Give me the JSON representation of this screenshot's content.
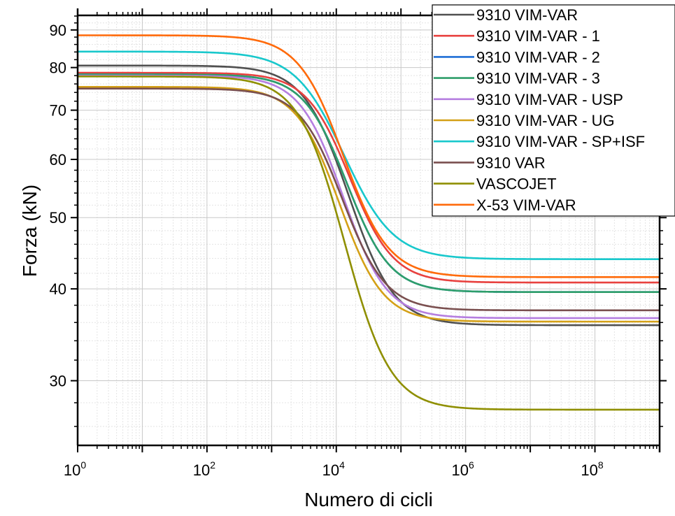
{
  "chart_data": {
    "type": "line",
    "title": "",
    "xlabel": "Numero di cicli",
    "ylabel": "Forza (kN)",
    "xscale": "log",
    "yscale": "log",
    "xlim": [
      1,
      1000000000
    ],
    "ylim": [
      24.5,
      94.2
    ],
    "grid": true,
    "legend_position": "top-right",
    "x_ticks": [
      {
        "value": 1,
        "base": "10",
        "exp": "0"
      },
      {
        "value": 100,
        "base": "10",
        "exp": "2"
      },
      {
        "value": 10000,
        "base": "10",
        "exp": "4"
      },
      {
        "value": 1000000,
        "base": "10",
        "exp": "6"
      },
      {
        "value": 100000000,
        "base": "10",
        "exp": "8"
      }
    ],
    "y_ticks": [
      {
        "value": 30,
        "label": "30"
      },
      {
        "value": 40,
        "label": "40"
      },
      {
        "value": 50,
        "label": "50"
      },
      {
        "value": 60,
        "label": "60"
      },
      {
        "value": 70,
        "label": "70"
      },
      {
        "value": 80,
        "label": "80"
      },
      {
        "value": 90,
        "label": "90"
      }
    ],
    "series": [
      {
        "name": "9310 VIM-VAR",
        "color": "#505050",
        "high": 80.5,
        "low": 35.7,
        "mid_log10N": 4.05,
        "slope": 1.25
      },
      {
        "name": "9310 VIM-VAR - 1",
        "color": "#e8413f",
        "high": 78.7,
        "low": 40.8,
        "mid_log10N": 4.1,
        "slope": 1.3
      },
      {
        "name": "9310 VIM-VAR - 2",
        "color": "#1f6fd6",
        "high": 78.3,
        "low": 39.6,
        "mid_log10N": 4.05,
        "slope": 1.3
      },
      {
        "name": "9310 VIM-VAR - 3",
        "color": "#2e9e6a",
        "high": 78.3,
        "low": 39.6,
        "mid_log10N": 4.05,
        "slope": 1.3
      },
      {
        "name": "9310 VIM-VAR - USP",
        "color": "#b57ee0",
        "high": 78.0,
        "low": 36.5,
        "mid_log10N": 3.98,
        "slope": 1.3
      },
      {
        "name": "9310 VIM-VAR - UG",
        "color": "#d4a017",
        "high": 75.3,
        "low": 36.1,
        "mid_log10N": 3.93,
        "slope": 1.3
      },
      {
        "name": "9310 VIM-VAR - SP+ISF",
        "color": "#18c8cc",
        "high": 84.1,
        "low": 43.9,
        "mid_log10N": 4.0,
        "slope": 1.15
      },
      {
        "name": "9310 VAR",
        "color": "#7a4f4f",
        "high": 74.9,
        "low": 37.4,
        "mid_log10N": 3.98,
        "slope": 1.3
      },
      {
        "name": "VASCOJET",
        "color": "#8f8f00",
        "high": 77.8,
        "low": 27.4,
        "mid_log10N": 3.95,
        "slope": 1.25
      },
      {
        "name": "X-53 VIM-VAR",
        "color": "#ff6a0a",
        "high": 88.5,
        "low": 41.5,
        "mid_log10N": 3.98,
        "slope": 1.25
      }
    ]
  }
}
